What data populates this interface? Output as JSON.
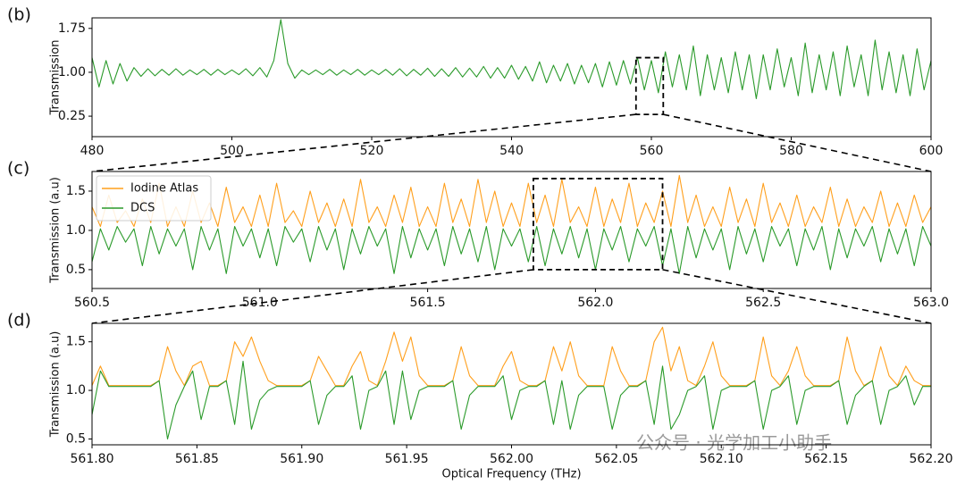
{
  "chart_data": [
    {
      "type": "line",
      "label": "(b)",
      "ylabel": "Transmission",
      "x": [
        480,
        481,
        482,
        483,
        484,
        485,
        486,
        487,
        488,
        489,
        490,
        491,
        492,
        493,
        494,
        495,
        496,
        497,
        498,
        499,
        500,
        501,
        502,
        503,
        504,
        505,
        506,
        507,
        508,
        509,
        510,
        511,
        512,
        513,
        514,
        515,
        516,
        517,
        518,
        519,
        520,
        521,
        522,
        523,
        524,
        525,
        526,
        527,
        528,
        529,
        530,
        531,
        532,
        533,
        534,
        535,
        536,
        537,
        538,
        539,
        540,
        541,
        542,
        543,
        544,
        545,
        546,
        547,
        548,
        549,
        550,
        551,
        552,
        553,
        554,
        555,
        556,
        557,
        558,
        559,
        560,
        561,
        562,
        563,
        564,
        565,
        566,
        567,
        568,
        569,
        570,
        571,
        572,
        573,
        574,
        575,
        576,
        577,
        578,
        579,
        580,
        581,
        582,
        583,
        584,
        585,
        586,
        587,
        588,
        589,
        590,
        591,
        592,
        593,
        594,
        595,
        596,
        597,
        598,
        599,
        600
      ],
      "series": [
        {
          "color": "#2a9a2a",
          "values": [
            1.25,
            0.75,
            1.2,
            0.8,
            1.15,
            0.85,
            1.08,
            0.93,
            1.06,
            0.94,
            1.05,
            0.95,
            1.06,
            0.95,
            1.04,
            0.96,
            1.05,
            0.95,
            1.05,
            0.96,
            1.04,
            0.96,
            1.06,
            0.94,
            1.08,
            0.92,
            1.2,
            1.9,
            1.15,
            0.9,
            1.04,
            0.96,
            1.04,
            0.96,
            1.05,
            0.95,
            1.04,
            0.96,
            1.05,
            0.95,
            1.04,
            0.96,
            1.05,
            0.95,
            1.06,
            0.94,
            1.05,
            0.95,
            1.07,
            0.93,
            1.06,
            0.93,
            1.08,
            0.92,
            1.07,
            0.92,
            1.1,
            0.9,
            1.08,
            0.9,
            1.12,
            0.88,
            1.1,
            0.85,
            1.18,
            0.82,
            1.12,
            0.85,
            1.15,
            0.8,
            1.12,
            0.82,
            1.15,
            0.75,
            1.18,
            0.78,
            1.2,
            0.8,
            1.25,
            0.7,
            1.2,
            0.65,
            1.35,
            0.75,
            1.3,
            0.7,
            1.45,
            0.6,
            1.3,
            0.7,
            1.25,
            0.65,
            1.35,
            0.7,
            1.3,
            0.55,
            1.3,
            0.7,
            1.4,
            0.75,
            1.25,
            0.6,
            1.5,
            0.65,
            1.3,
            0.7,
            1.35,
            0.6,
            1.45,
            0.75,
            1.3,
            0.6,
            1.55,
            0.7,
            1.35,
            0.65,
            1.3,
            0.6,
            1.4,
            0.7,
            1.2
          ]
        }
      ],
      "xlim": [
        480,
        600
      ],
      "ylim": [
        -0.1,
        1.93
      ],
      "xticks": [
        480,
        500,
        520,
        540,
        560,
        580,
        600
      ],
      "yticks": [
        0.25,
        {
          "value": 1,
          "label": "1.00"
        },
        1.75
      ],
      "zoom_box": {
        "xlim": [
          557.8,
          561.7
        ],
        "ylim": [
          0.28,
          1.25
        ]
      }
    },
    {
      "type": "line",
      "label": "(c)",
      "ylabel": "Transmission (a.u)",
      "x": [
        560.5,
        560.525,
        560.55,
        560.575,
        560.6,
        560.625,
        560.65,
        560.675,
        560.7,
        560.725,
        560.75,
        560.775,
        560.8,
        560.825,
        560.85,
        560.875,
        560.9,
        560.925,
        560.95,
        560.975,
        561,
        561.025,
        561.05,
        561.075,
        561.1,
        561.125,
        561.15,
        561.175,
        561.2,
        561.225,
        561.25,
        561.275,
        561.3,
        561.325,
        561.35,
        561.375,
        561.4,
        561.425,
        561.45,
        561.475,
        561.5,
        561.525,
        561.55,
        561.575,
        561.6,
        561.625,
        561.65,
        561.675,
        561.7,
        561.725,
        561.75,
        561.775,
        561.8,
        561.825,
        561.85,
        561.875,
        561.9,
        561.925,
        561.95,
        561.975,
        562,
        562.025,
        562.05,
        562.075,
        562.1,
        562.125,
        562.15,
        562.175,
        562.2,
        562.225,
        562.25,
        562.275,
        562.3,
        562.325,
        562.35,
        562.375,
        562.4,
        562.425,
        562.45,
        562.475,
        562.5,
        562.525,
        562.55,
        562.575,
        562.6,
        562.625,
        562.65,
        562.675,
        562.7,
        562.725,
        562.75,
        562.775,
        562.8,
        562.825,
        562.85,
        562.875,
        562.9,
        562.925,
        562.95,
        562.975,
        563
      ],
      "series": [
        {
          "name": "Iodine Atlas",
          "color": "#ff9f1c",
          "values": [
            1.3,
            1.05,
            1.45,
            1.1,
            1.25,
            1.05,
            1.4,
            1.1,
            1.6,
            1.05,
            1.3,
            1.05,
            1.5,
            1.1,
            1.35,
            1.05,
            1.55,
            1.1,
            1.3,
            1.05,
            1.45,
            1.05,
            1.6,
            1.1,
            1.25,
            1.05,
            1.5,
            1.1,
            1.35,
            1.05,
            1.4,
            1.05,
            1.65,
            1.1,
            1.3,
            1.05,
            1.45,
            1.1,
            1.55,
            1.05,
            1.3,
            1.05,
            1.6,
            1.1,
            1.4,
            1.05,
            1.65,
            1.1,
            1.5,
            1.05,
            1.35,
            1.05,
            1.6,
            1.1,
            1.45,
            1.05,
            1.65,
            1.1,
            1.3,
            1.05,
            1.55,
            1.05,
            1.4,
            1.1,
            1.6,
            1.05,
            1.35,
            1.1,
            1.5,
            1.05,
            1.7,
            1.1,
            1.45,
            1.05,
            1.3,
            1.05,
            1.55,
            1.1,
            1.4,
            1.05,
            1.6,
            1.1,
            1.35,
            1.05,
            1.45,
            1.05,
            1.3,
            1.1,
            1.55,
            1.05,
            1.4,
            1.05,
            1.3,
            1.1,
            1.5,
            1.05,
            1.35,
            1.05,
            1.45,
            1.1,
            1.3
          ]
        },
        {
          "name": "DCS",
          "color": "#2a9a2a",
          "values": [
            0.6,
            1.02,
            0.75,
            1.05,
            0.85,
            1.02,
            0.55,
            1.05,
            0.7,
            1.02,
            0.8,
            1.02,
            0.5,
            1.05,
            0.75,
            1.02,
            0.45,
            1.05,
            0.8,
            1.02,
            0.65,
            1.02,
            0.55,
            1.05,
            0.85,
            1.02,
            0.6,
            1.05,
            0.75,
            1.02,
            0.5,
            1.02,
            0.7,
            1.05,
            0.8,
            1.02,
            0.45,
            1.05,
            0.65,
            1.02,
            0.75,
            1.02,
            0.55,
            1.05,
            0.7,
            1.02,
            0.6,
            1.05,
            0.5,
            1.02,
            0.8,
            1.02,
            0.6,
            1.05,
            0.55,
            1.02,
            0.7,
            1.05,
            0.65,
            1.02,
            0.5,
            1.02,
            0.75,
            1.05,
            0.6,
            1.02,
            0.8,
            1.05,
            0.55,
            1.02,
            0.45,
            1.05,
            0.65,
            1.02,
            0.75,
            1.02,
            0.5,
            1.05,
            0.7,
            1.02,
            0.6,
            1.05,
            0.8,
            1.02,
            0.55,
            1.02,
            0.75,
            1.05,
            0.5,
            1.02,
            0.65,
            1.02,
            0.8,
            1.05,
            0.6,
            1.02,
            0.7,
            1.02,
            0.55,
            1.05,
            0.8
          ]
        }
      ],
      "xlim": [
        560.5,
        563
      ],
      "ylim": [
        0.26,
        1.75
      ],
      "xticks": [
        560.5,
        {
          "value": 561,
          "label": "561.0"
        },
        561.5,
        {
          "value": 562,
          "label": "562.0"
        },
        562.5,
        {
          "value": 563,
          "label": "563.0"
        }
      ],
      "yticks": [
        0.5,
        {
          "value": 1,
          "label": "1.0"
        },
        1.5
      ],
      "legend": "upper left",
      "zoom_box": {
        "xlim": [
          561.815,
          562.2
        ],
        "ylim": [
          0.5,
          1.66
        ]
      }
    },
    {
      "type": "line",
      "label": "(d)",
      "ylabel": "Transmission (a.u)",
      "xlabel": "Optical Frequency (THz)",
      "x": [
        561.8,
        561.804,
        561.808,
        561.812,
        561.816,
        561.82,
        561.824,
        561.828,
        561.832,
        561.836,
        561.84,
        561.844,
        561.848,
        561.852,
        561.856,
        561.86,
        561.864,
        561.868,
        561.872,
        561.876,
        561.88,
        561.884,
        561.888,
        561.892,
        561.896,
        561.9,
        561.904,
        561.908,
        561.912,
        561.916,
        561.92,
        561.924,
        561.928,
        561.932,
        561.936,
        561.94,
        561.944,
        561.948,
        561.952,
        561.956,
        561.96,
        561.964,
        561.968,
        561.972,
        561.976,
        561.98,
        561.984,
        561.988,
        561.992,
        561.996,
        562,
        562.004,
        562.008,
        562.012,
        562.016,
        562.02,
        562.024,
        562.028,
        562.032,
        562.036,
        562.04,
        562.044,
        562.048,
        562.052,
        562.056,
        562.06,
        562.064,
        562.068,
        562.072,
        562.076,
        562.08,
        562.084,
        562.088,
        562.092,
        562.096,
        562.1,
        562.104,
        562.108,
        562.112,
        562.116,
        562.12,
        562.124,
        562.128,
        562.132,
        562.136,
        562.14,
        562.144,
        562.148,
        562.152,
        562.156,
        562.16,
        562.164,
        562.168,
        562.172,
        562.176,
        562.18,
        562.184,
        562.188,
        562.192,
        562.196,
        562.2
      ],
      "series": [
        {
          "color": "#ff9f1c",
          "values": [
            1.05,
            1.25,
            1.05,
            1.05,
            1.05,
            1.05,
            1.05,
            1.05,
            1.1,
            1.45,
            1.2,
            1.05,
            1.25,
            1.3,
            1.05,
            1.05,
            1.1,
            1.5,
            1.35,
            1.55,
            1.3,
            1.1,
            1.05,
            1.05,
            1.05,
            1.05,
            1.1,
            1.35,
            1.2,
            1.05,
            1.05,
            1.25,
            1.4,
            1.1,
            1.05,
            1.3,
            1.6,
            1.3,
            1.55,
            1.15,
            1.05,
            1.05,
            1.05,
            1.1,
            1.45,
            1.15,
            1.05,
            1.05,
            1.05,
            1.25,
            1.4,
            1.1,
            1.05,
            1.05,
            1.1,
            1.45,
            1.2,
            1.5,
            1.15,
            1.05,
            1.05,
            1.05,
            1.45,
            1.2,
            1.05,
            1.05,
            1.1,
            1.5,
            1.65,
            1.2,
            1.45,
            1.1,
            1.05,
            1.25,
            1.5,
            1.15,
            1.05,
            1.05,
            1.05,
            1.1,
            1.55,
            1.15,
            1.05,
            1.2,
            1.45,
            1.15,
            1.05,
            1.05,
            1.05,
            1.1,
            1.55,
            1.2,
            1.05,
            1.1,
            1.45,
            1.15,
            1.05,
            1.25,
            1.1,
            1.05,
            1.05
          ]
        },
        {
          "color": "#2a9a2a",
          "values": [
            0.75,
            1.2,
            1.04,
            1.04,
            1.04,
            1.04,
            1.04,
            1.04,
            1.1,
            0.5,
            0.85,
            1.04,
            1.2,
            0.7,
            1.04,
            1.04,
            1.1,
            0.65,
            1.3,
            0.6,
            0.9,
            1.0,
            1.04,
            1.04,
            1.04,
            1.04,
            1.1,
            0.65,
            0.95,
            1.04,
            1.04,
            1.15,
            0.6,
            1.0,
            1.04,
            1.2,
            0.65,
            1.2,
            0.7,
            1.0,
            1.04,
            1.04,
            1.04,
            1.1,
            0.6,
            0.95,
            1.04,
            1.04,
            1.04,
            1.15,
            0.7,
            1.0,
            1.04,
            1.04,
            1.1,
            0.65,
            1.1,
            0.6,
            0.95,
            1.04,
            1.04,
            1.04,
            0.6,
            0.95,
            1.04,
            1.04,
            1.1,
            0.65,
            1.25,
            0.6,
            0.75,
            1.0,
            1.04,
            1.15,
            0.6,
            1.0,
            1.04,
            1.04,
            1.04,
            1.1,
            0.6,
            1.0,
            1.04,
            1.15,
            0.65,
            1.0,
            1.04,
            1.04,
            1.04,
            1.1,
            0.65,
            0.95,
            1.04,
            1.1,
            0.65,
            1.0,
            1.04,
            1.15,
            0.85,
            1.04,
            1.04
          ]
        }
      ],
      "xlim": [
        561.8,
        562.2
      ],
      "ylim": [
        0.44,
        1.69
      ],
      "xticks": [
        {
          "value": 561.8,
          "label": "561.80"
        },
        561.85,
        {
          "value": 561.9,
          "label": "561.90"
        },
        561.95,
        {
          "value": 562,
          "label": "562.00"
        },
        562.05,
        {
          "value": 562.1,
          "label": "562.10"
        },
        562.15,
        {
          "value": 562.2,
          "label": "562.20"
        }
      ],
      "yticks": [
        0.5,
        {
          "value": 1,
          "label": "1.0"
        },
        1.5
      ]
    }
  ],
  "watermark": "公众号 · 光学加工小助手"
}
